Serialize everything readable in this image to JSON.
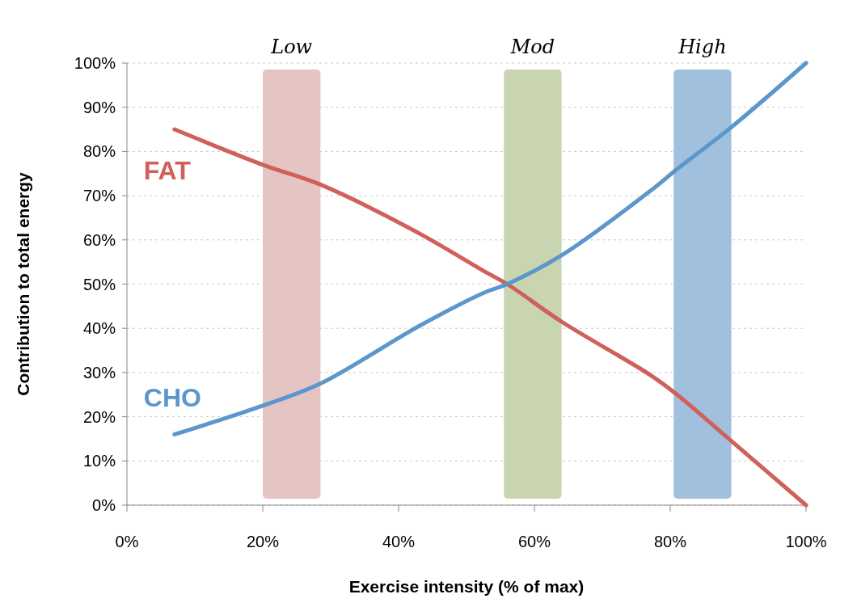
{
  "chart_data": {
    "type": "line",
    "xlabel": "Exercise intensity (% of max)",
    "ylabel": "Contribution to total energy",
    "xlim": [
      0,
      100
    ],
    "ylim": [
      0,
      100
    ],
    "xticks": [
      {
        "value": 0,
        "label": "0%"
      },
      {
        "value": 20,
        "label": "20%"
      },
      {
        "value": 40,
        "label": "40%"
      },
      {
        "value": 60,
        "label": "60%"
      },
      {
        "value": 80,
        "label": "80%"
      },
      {
        "value": 100,
        "label": "100%"
      }
    ],
    "yticks": [
      {
        "value": 0,
        "label": "0%"
      },
      {
        "value": 10,
        "label": "10%"
      },
      {
        "value": 20,
        "label": "20%"
      },
      {
        "value": 30,
        "label": "30%"
      },
      {
        "value": 40,
        "label": "40%"
      },
      {
        "value": 50,
        "label": "50%"
      },
      {
        "value": 60,
        "label": "60%"
      },
      {
        "value": 70,
        "label": "70%"
      },
      {
        "value": 80,
        "label": "80%"
      },
      {
        "value": 90,
        "label": "90%"
      },
      {
        "value": 100,
        "label": "100%"
      }
    ],
    "grid": "y",
    "marker": "none",
    "line_style": "solid",
    "series": [
      {
        "name": "FAT",
        "color": "#d0605a",
        "x": [
          7,
          20,
          28.5,
          43,
          52.5,
          56,
          64,
          77,
          81,
          89,
          100
        ],
        "values": [
          85,
          77,
          72.5,
          61.5,
          53,
          50,
          41.5,
          29.5,
          25,
          14.5,
          0
        ]
      },
      {
        "name": "CHO",
        "color": "#5b97cb",
        "x": [
          7,
          20,
          28.5,
          43,
          52.5,
          56,
          64,
          77,
          81,
          89,
          100
        ],
        "values": [
          16,
          22.5,
          27.5,
          40.5,
          48,
          50,
          56.5,
          71,
          76,
          85.5,
          100
        ]
      }
    ],
    "bands": [
      {
        "axis": "x",
        "from": 20,
        "to": 28.5,
        "label": "Low",
        "color": "#e5c4c4"
      },
      {
        "axis": "x",
        "from": 55.5,
        "to": 64,
        "label": "Mod",
        "color": "#c9d5b1"
      },
      {
        "axis": "x",
        "from": 80.5,
        "to": 89,
        "label": "High",
        "color": "#a1c0de"
      }
    ]
  }
}
